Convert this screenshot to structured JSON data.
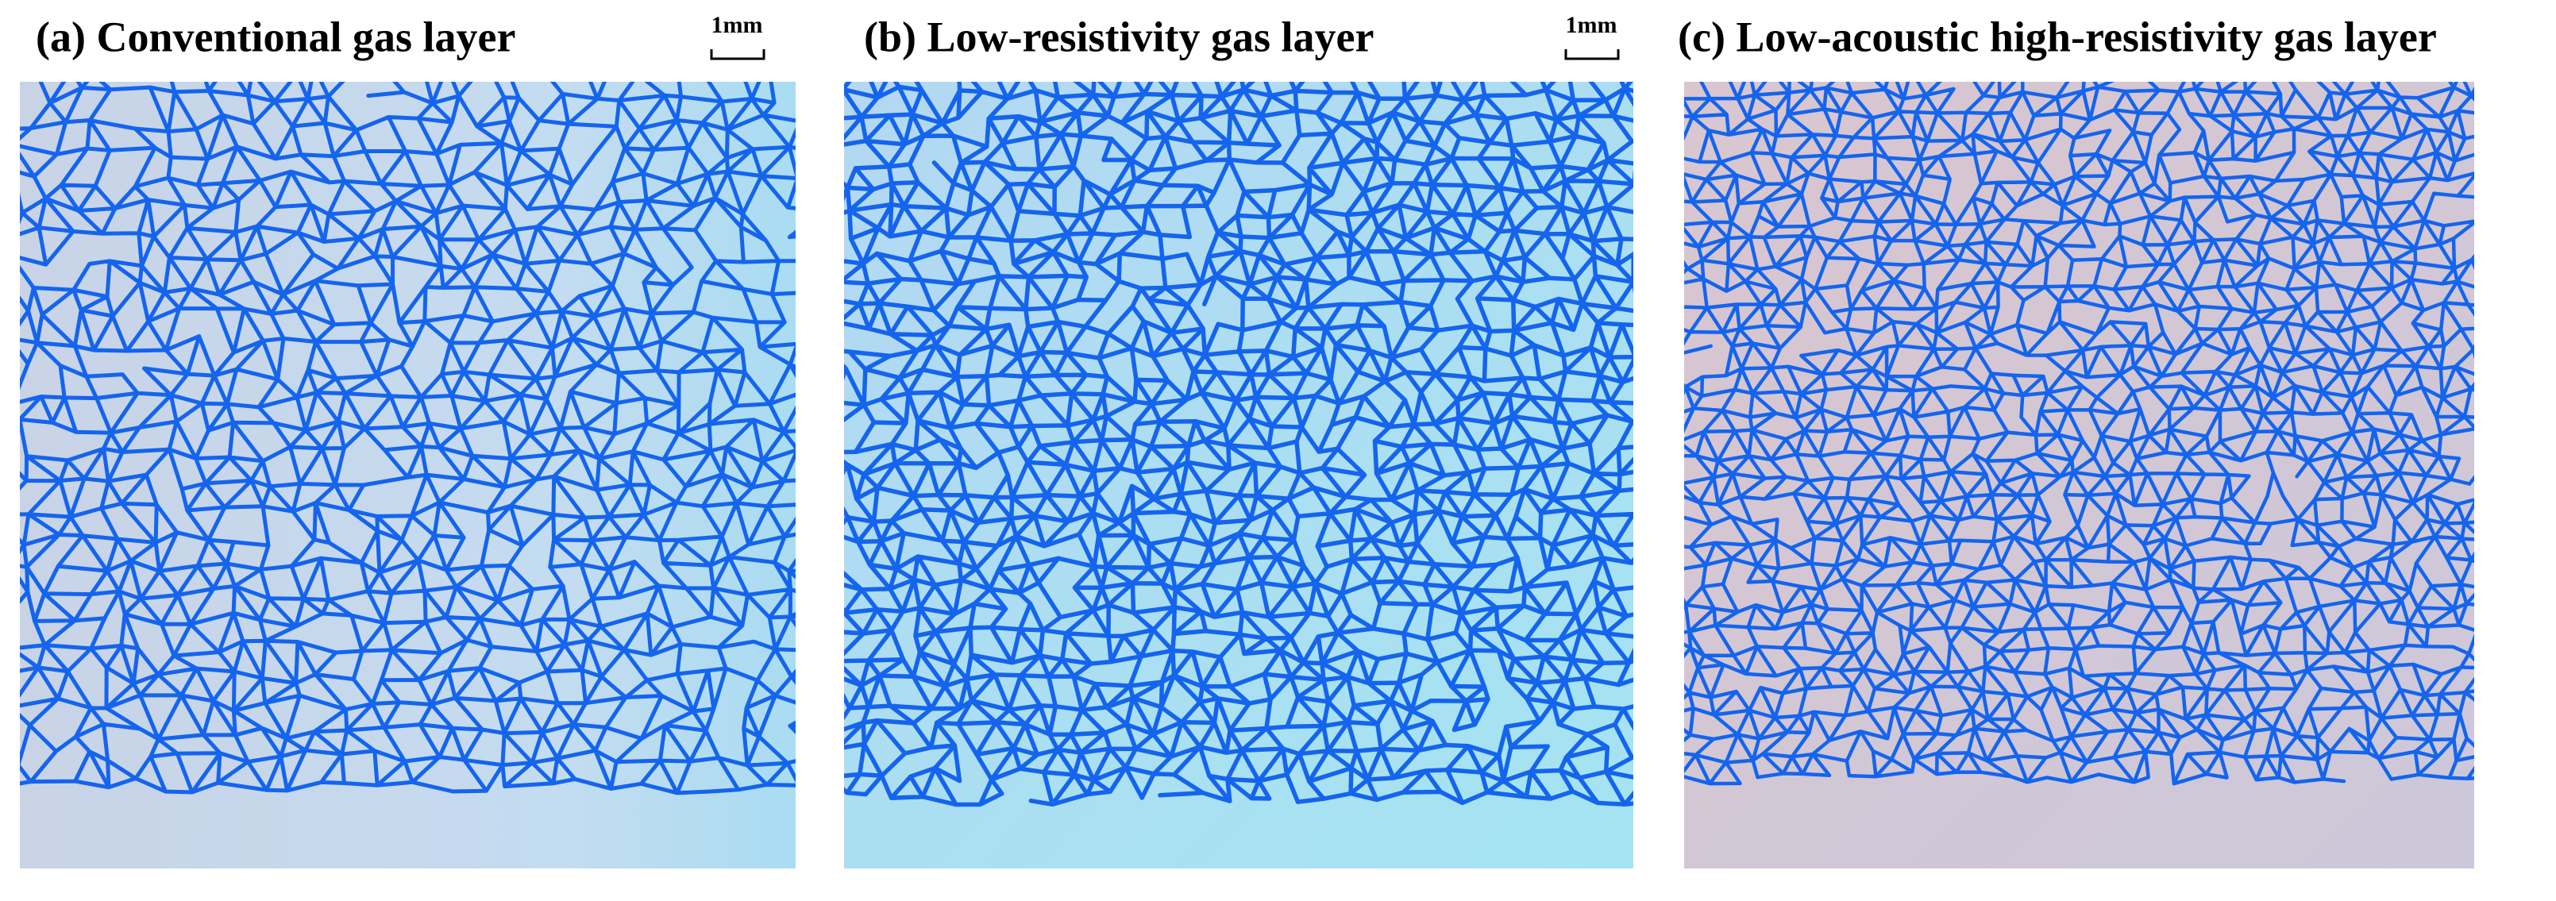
{
  "panels": [
    {
      "title": "(a) Conventional gas layer",
      "scale_label": "1mm"
    },
    {
      "title": "(b) Low-resistivity gas layer",
      "scale_label": "1mm"
    },
    {
      "title": "(c) Low-acoustic high-resistivity gas layer"
    }
  ]
}
